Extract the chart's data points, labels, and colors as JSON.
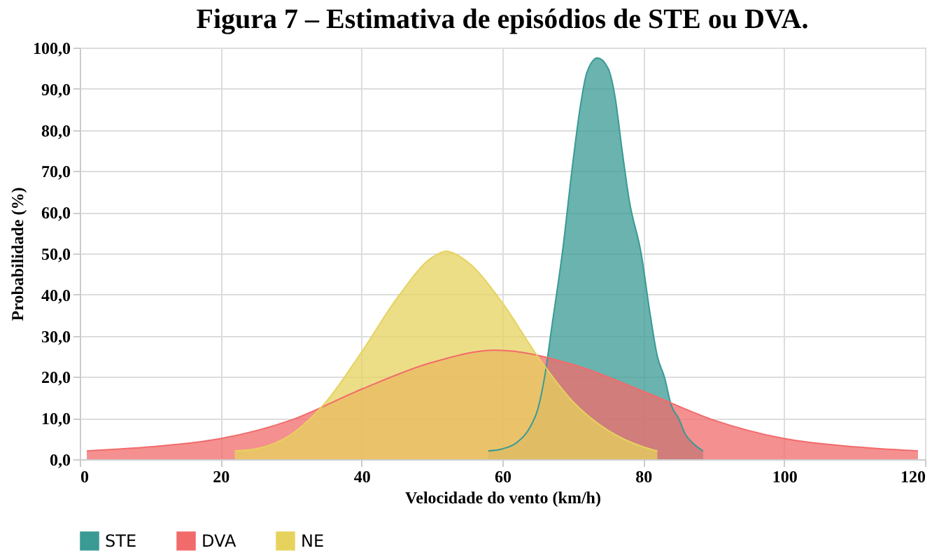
{
  "chart_data": {
    "type": "area",
    "title": "Figura 7 – Estimativa de episódios de STE ou DVA.",
    "xlabel": "Velocidade do vento (km/h)",
    "ylabel": "Probabilidade (%)",
    "xlim": [
      0,
      120
    ],
    "xticks": [
      0,
      20,
      40,
      60,
      80,
      100,
      120
    ],
    "ylim": [
      0,
      100
    ],
    "yticks": [
      {
        "value": 0,
        "label": "0,0"
      },
      {
        "value": 10,
        "label": "10,0"
      },
      {
        "value": 20,
        "label": "20,0"
      },
      {
        "value": 30,
        "label": "30,0"
      },
      {
        "value": 40,
        "label": "40,0"
      },
      {
        "value": 50,
        "label": "50,0"
      },
      {
        "value": 60,
        "label": "60,0"
      },
      {
        "value": 70,
        "label": "70,0"
      },
      {
        "value": 80,
        "label": "80,0"
      },
      {
        "value": 90,
        "label": "90,0"
      },
      {
        "value": 100,
        "label": "100,0"
      }
    ],
    "grid": true,
    "legend": "bottom",
    "series": [
      {
        "name": "STE",
        "color": "#3a9a94",
        "x": [
          58,
          60,
          62,
          64,
          65,
          66,
          67,
          68.5,
          70,
          71,
          72,
          73.5,
          75,
          76,
          77,
          78,
          79.7,
          81,
          82,
          83,
          84,
          85,
          86,
          87,
          88.5
        ],
        "values": [
          2,
          2.5,
          4,
          8,
          12,
          20,
          32,
          50,
          72,
          85,
          94,
          97.5,
          95,
          88,
          75,
          63,
          50,
          35,
          25,
          20,
          13,
          10,
          6,
          4,
          2
        ]
      },
      {
        "name": "DVA",
        "color": "#f26b6b",
        "x": [
          1,
          10,
          20,
          30,
          40,
          50,
          59,
          70,
          80,
          90,
          100,
          110,
          119
        ],
        "values": [
          2,
          3,
          5,
          9.5,
          17,
          23.5,
          26.5,
          23,
          16.5,
          9.5,
          5,
          3,
          2
        ]
      },
      {
        "name": "NE",
        "color": "#e6d35e",
        "x": [
          22,
          25,
          30,
          35,
          40,
          45,
          50,
          52,
          55,
          60,
          65,
          70,
          75,
          80,
          82
        ],
        "values": [
          2,
          2.5,
          6,
          14,
          26,
          39,
          49,
          50.5,
          48,
          38,
          25,
          14,
          7,
          3,
          2
        ]
      }
    ]
  }
}
